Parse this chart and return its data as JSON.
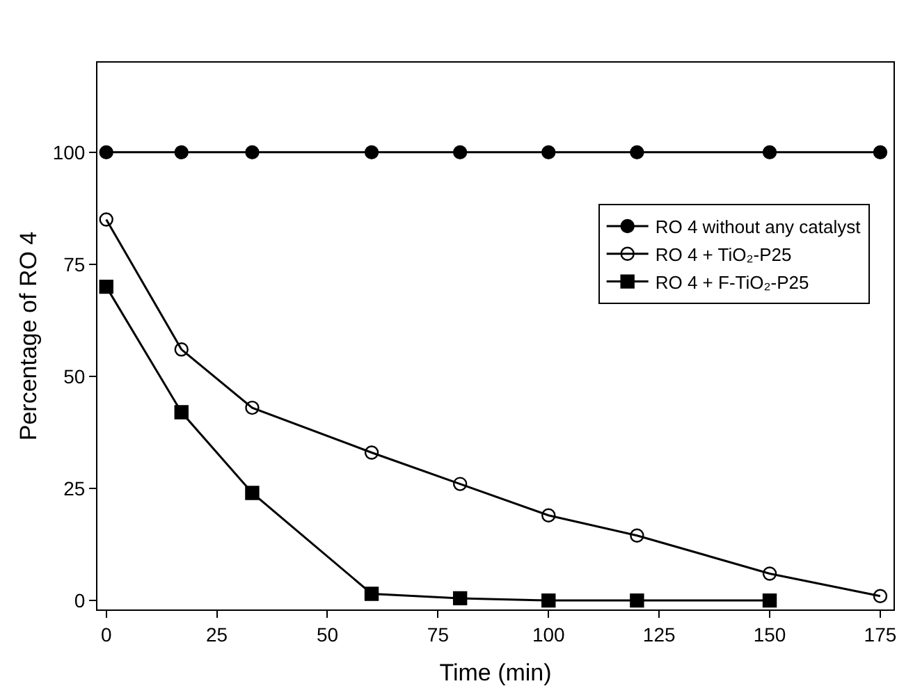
{
  "chart_data": {
    "type": "line",
    "xlabel": "Time (min)",
    "ylabel": "Percentage of RO 4",
    "xlim": [
      -2,
      178
    ],
    "xticks": [
      0,
      25,
      50,
      75,
      100,
      125,
      150,
      175
    ],
    "ylim": [
      -2,
      120
    ],
    "yticks": [
      0,
      25,
      50,
      75,
      100
    ],
    "grid": false,
    "legend": "right",
    "marker": "circle",
    "line_style": "solid",
    "series": [
      {
        "name": "RO 4 without any catalyst",
        "color": "#000000",
        "x": [
          0,
          17,
          33,
          60,
          80,
          100,
          120,
          150,
          175
        ],
        "values": [
          100,
          100,
          100,
          100,
          100,
          100,
          100,
          100,
          100
        ]
      },
      {
        "name": "RO 4 + TiO₂-P25",
        "color": "#000000",
        "marker": "circle-open",
        "x": [
          0,
          17,
          33,
          60,
          80,
          100,
          120,
          150,
          175
        ],
        "values": [
          85,
          56,
          43,
          33,
          26,
          19,
          14.5,
          6,
          1
        ]
      },
      {
        "name": "RO 4 + F-TiO₂-P25",
        "color": "#000000",
        "marker": "square",
        "x": [
          0,
          17,
          33,
          60,
          80,
          100,
          120,
          150
        ],
        "values": [
          70,
          42,
          24,
          1.5,
          0.5,
          0,
          0,
          0
        ]
      }
    ]
  }
}
